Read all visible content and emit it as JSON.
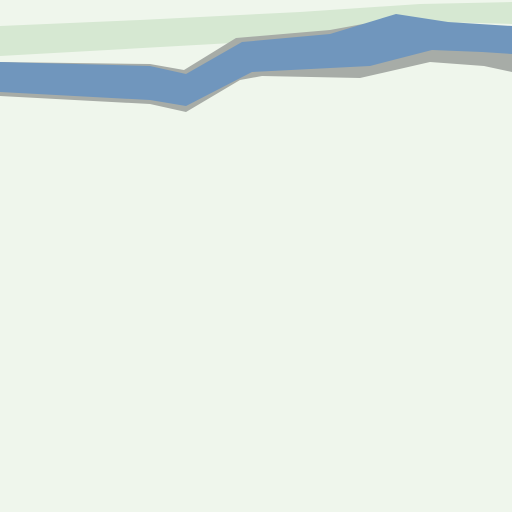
{
  "map": {
    "features": [
      {
        "kind": "park-strip",
        "color": "#d6e8d2"
      },
      {
        "kind": "riverbank",
        "color": "#a7aca7"
      },
      {
        "kind": "river",
        "color": "#7096bd"
      }
    ],
    "background_color": "#eff6ec"
  }
}
